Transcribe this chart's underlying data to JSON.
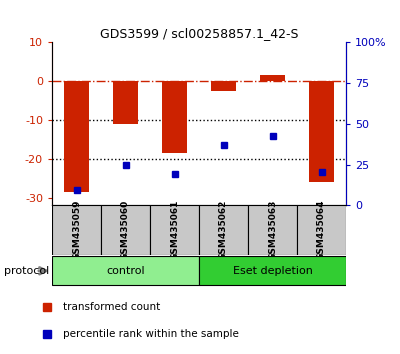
{
  "title": "GDS3599 / scl00258857.1_42-S",
  "categories": [
    "GSM435059",
    "GSM435060",
    "GSM435061",
    "GSM435062",
    "GSM435063",
    "GSM435064"
  ],
  "red_values": [
    -28.5,
    -11.0,
    -18.5,
    -2.5,
    1.5,
    -26.0
  ],
  "blue_values": [
    -28.0,
    -21.5,
    -24.0,
    -16.5,
    -14.0,
    -23.5
  ],
  "ylim_left": [
    -32,
    10
  ],
  "ylim_right": [
    0,
    100
  ],
  "left_yticks": [
    10,
    0,
    -10,
    -20,
    -30
  ],
  "right_yticks": [
    100,
    75,
    50,
    25,
    0
  ],
  "right_ytick_labels": [
    "100%",
    "75",
    "50",
    "25",
    "0"
  ],
  "group_labels": [
    "control",
    "Eset depletion"
  ],
  "group_ranges": [
    [
      0,
      3
    ],
    [
      3,
      6
    ]
  ],
  "group_colors_light": "#90EE90",
  "group_colors_dark": "#32CD32",
  "protocol_label": "protocol",
  "legend_red": "transformed count",
  "legend_blue": "percentile rank within the sample",
  "red_color": "#CC2200",
  "blue_color": "#0000BB",
  "bar_width": 0.5,
  "gray_box_color": "#C8C8C8"
}
